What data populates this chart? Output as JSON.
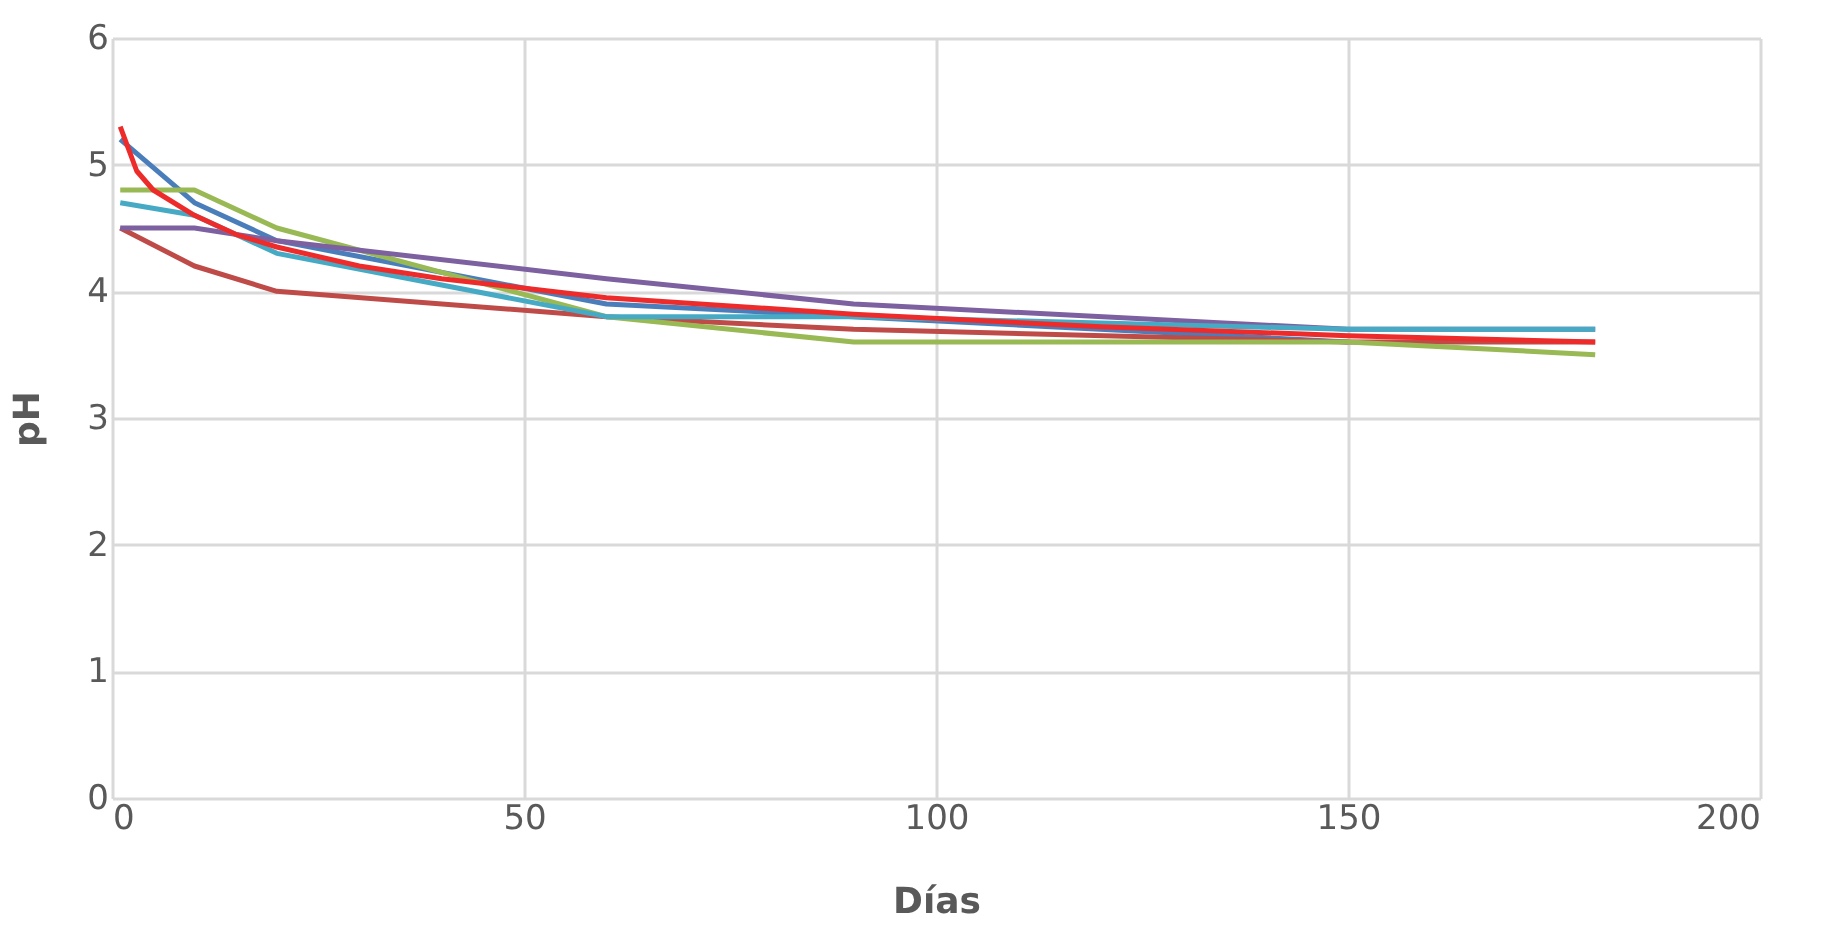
{
  "chart_data": {
    "type": "line",
    "xlabel": "Días",
    "ylabel": "pH",
    "xlim": [
      0,
      200
    ],
    "xticks": [
      0,
      50,
      100,
      150,
      200
    ],
    "ylim": [
      0,
      6
    ],
    "yticks": [
      0,
      1,
      2,
      3,
      4,
      5,
      6
    ],
    "grid": true,
    "marker": "none",
    "line_style": "solid",
    "series": [
      {
        "color": "#4a7ebb",
        "x": [
          1,
          10,
          20,
          60,
          90,
          150
        ],
        "values": [
          5.2,
          4.7,
          4.4,
          3.9,
          3.8,
          3.6
        ]
      },
      {
        "color": "#be4b48",
        "x": [
          1,
          10,
          20,
          60,
          90,
          150,
          180
        ],
        "values": [
          4.5,
          4.2,
          4.0,
          3.8,
          3.7,
          3.6,
          3.6
        ]
      },
      {
        "color": "#98b954",
        "x": [
          1,
          10,
          20,
          60,
          90,
          150,
          180
        ],
        "values": [
          4.8,
          4.8,
          4.5,
          3.8,
          3.6,
          3.6,
          3.5
        ]
      },
      {
        "color": "#7d60a0",
        "x": [
          1,
          10,
          20,
          60,
          90,
          150,
          180
        ],
        "values": [
          4.5,
          4.5,
          4.4,
          4.1,
          3.9,
          3.7,
          3.7
        ]
      },
      {
        "color": "#46aac5",
        "x": [
          1,
          10,
          20,
          60,
          90,
          150,
          180
        ],
        "values": [
          4.7,
          4.6,
          4.3,
          3.8,
          3.8,
          3.7,
          3.7
        ]
      },
      {
        "color": "#ee2b2b",
        "x": [
          1,
          3,
          5,
          10,
          15,
          20,
          30,
          40,
          60,
          90,
          120,
          150,
          180
        ],
        "values": [
          5.3,
          4.95,
          4.8,
          4.6,
          4.45,
          4.35,
          4.2,
          4.1,
          3.95,
          3.82,
          3.72,
          3.65,
          3.6
        ]
      }
    ]
  }
}
